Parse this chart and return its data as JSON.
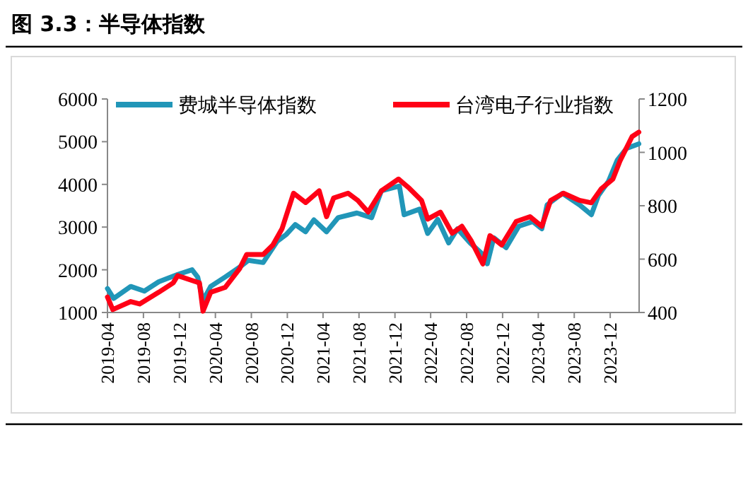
{
  "chart_data": {
    "type": "line",
    "title": "图 3.3：半导体指数",
    "xlim": [
      "2019-04-01",
      "2024-03-08"
    ],
    "xticks": [
      "2019-04",
      "2019-08",
      "2019-12",
      "2020-04",
      "2020-08",
      "2020-12",
      "2021-04",
      "2021-08",
      "2021-12",
      "2022-04",
      "2022-08",
      "2022-12",
      "2023-04",
      "2023-08",
      "2023-12"
    ],
    "ylim": [
      1000,
      6000
    ],
    "yticks": [
      1000,
      2000,
      3000,
      4000,
      5000,
      6000
    ],
    "y2lim": [
      400,
      1200
    ],
    "y2ticks": [
      400,
      600,
      800,
      1000,
      1200
    ],
    "legend": "top",
    "grid": false,
    "marker": "none",
    "line_style": "solid",
    "series": [
      {
        "name": "费城半导体指数",
        "color": "#2196b8",
        "x": [
          "2019-04-01",
          "2019-04-22",
          "2019-06-19",
          "2019-08-04",
          "2019-09-22",
          "2019-11-25",
          "2020-01-13",
          "2020-02-01",
          "2020-02-19",
          "2020-03-16",
          "2020-05-04",
          "2020-06-22",
          "2020-07-22",
          "2020-09-10",
          "2020-10-28",
          "2020-11-28",
          "2020-12-28",
          "2021-02-01",
          "2021-03-01",
          "2021-04-13",
          "2021-05-22",
          "2021-07-25",
          "2021-09-13",
          "2021-10-16",
          "2021-12-16",
          "2022-01-01",
          "2022-02-22",
          "2022-03-22",
          "2022-04-25",
          "2022-06-01",
          "2022-07-01",
          "2022-08-13",
          "2022-09-25",
          "2022-10-10",
          "2022-11-01",
          "2022-12-13",
          "2023-01-25",
          "2023-03-13",
          "2023-04-13",
          "2023-05-01",
          "2023-06-22",
          "2023-08-19",
          "2023-09-28",
          "2023-10-22",
          "2023-11-25",
          "2023-12-25",
          "2024-01-25",
          "2024-03-07"
        ],
        "values": [
          1560,
          1330,
          1610,
          1500,
          1720,
          1890,
          2000,
          1830,
          1280,
          1610,
          1830,
          2060,
          2220,
          2170,
          2670,
          2830,
          3060,
          2890,
          3170,
          2890,
          3220,
          3330,
          3220,
          3850,
          3960,
          3290,
          3420,
          2850,
          3180,
          2630,
          2960,
          2630,
          2360,
          2140,
          2750,
          2520,
          3020,
          3130,
          2960,
          3520,
          3790,
          3520,
          3290,
          3740,
          4070,
          4570,
          4840,
          4950
        ]
      },
      {
        "name": "台湾电子行业指数",
        "color": "#ff0016",
        "axis": "y2",
        "x": [
          "2019-04-01",
          "2019-04-19",
          "2019-06-19",
          "2019-07-19",
          "2019-09-22",
          "2019-11-10",
          "2019-11-25",
          "2020-01-13",
          "2020-02-07",
          "2020-02-19",
          "2020-03-16",
          "2020-05-04",
          "2020-06-22",
          "2020-07-16",
          "2020-09-10",
          "2020-10-13",
          "2020-11-13",
          "2020-12-22",
          "2021-02-01",
          "2021-03-19",
          "2021-04-13",
          "2021-05-07",
          "2021-06-25",
          "2021-07-28",
          "2021-09-01",
          "2021-10-16",
          "2021-12-13",
          "2022-01-19",
          "2022-03-01",
          "2022-03-22",
          "2022-05-04",
          "2022-06-13",
          "2022-07-16",
          "2022-08-16",
          "2022-09-25",
          "2022-10-19",
          "2022-11-28",
          "2023-01-16",
          "2023-03-04",
          "2023-04-13",
          "2023-05-13",
          "2023-06-25",
          "2023-08-19",
          "2023-09-28",
          "2023-11-01",
          "2023-12-10",
          "2024-01-04",
          "2024-02-13",
          "2024-03-07"
        ],
        "values": [
          458,
          411,
          441,
          432,
          476,
          511,
          538,
          520,
          511,
          405,
          476,
          494,
          564,
          617,
          617,
          653,
          714,
          847,
          812,
          856,
          759,
          829,
          847,
          820,
          776,
          856,
          900,
          865,
          820,
          750,
          776,
          697,
          723,
          670,
          582,
          688,
          653,
          741,
          759,
          723,
          820,
          847,
          820,
          811,
          864,
          900,
          970,
          1059,
          1076
        ]
      }
    ]
  }
}
